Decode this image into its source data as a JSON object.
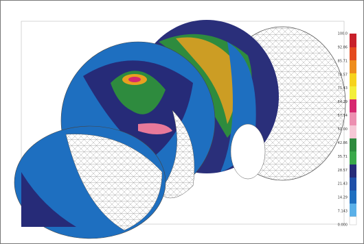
{
  "legend": {
    "labels": [
      "100.0",
      "92.86",
      "85.71",
      "78.57",
      "71.43",
      "64.29",
      "57.14",
      "50.00",
      "42.86",
      "35.71",
      "28.57",
      "21.43",
      "14.29",
      "7.143",
      "0.000"
    ]
  }
}
